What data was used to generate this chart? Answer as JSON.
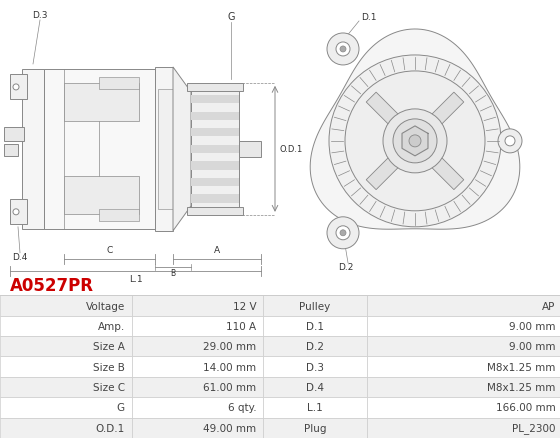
{
  "title": "A0527PR",
  "title_color": "#cc0000",
  "background_color": "#ffffff",
  "table": {
    "rows": [
      [
        "Voltage",
        "12 V",
        "Pulley",
        "AP"
      ],
      [
        "Amp.",
        "110 A",
        "D.1",
        "9.00 mm"
      ],
      [
        "Size A",
        "29.00 mm",
        "D.2",
        "9.00 mm"
      ],
      [
        "Size B",
        "14.00 mm",
        "D.3",
        "M8x1.25 mm"
      ],
      [
        "Size C",
        "61.00 mm",
        "D.4",
        "M8x1.25 mm"
      ],
      [
        "G",
        "6 qty.",
        "L.1",
        "166.00 mm"
      ],
      [
        "O.D.1",
        "49.00 mm",
        "Plug",
        "PL_2300"
      ]
    ],
    "row_bg_odd": "#f0f0f0",
    "row_bg_even": "#ffffff",
    "text_color": "#444444",
    "border_color": "#cccccc",
    "font_size": 7.5
  }
}
